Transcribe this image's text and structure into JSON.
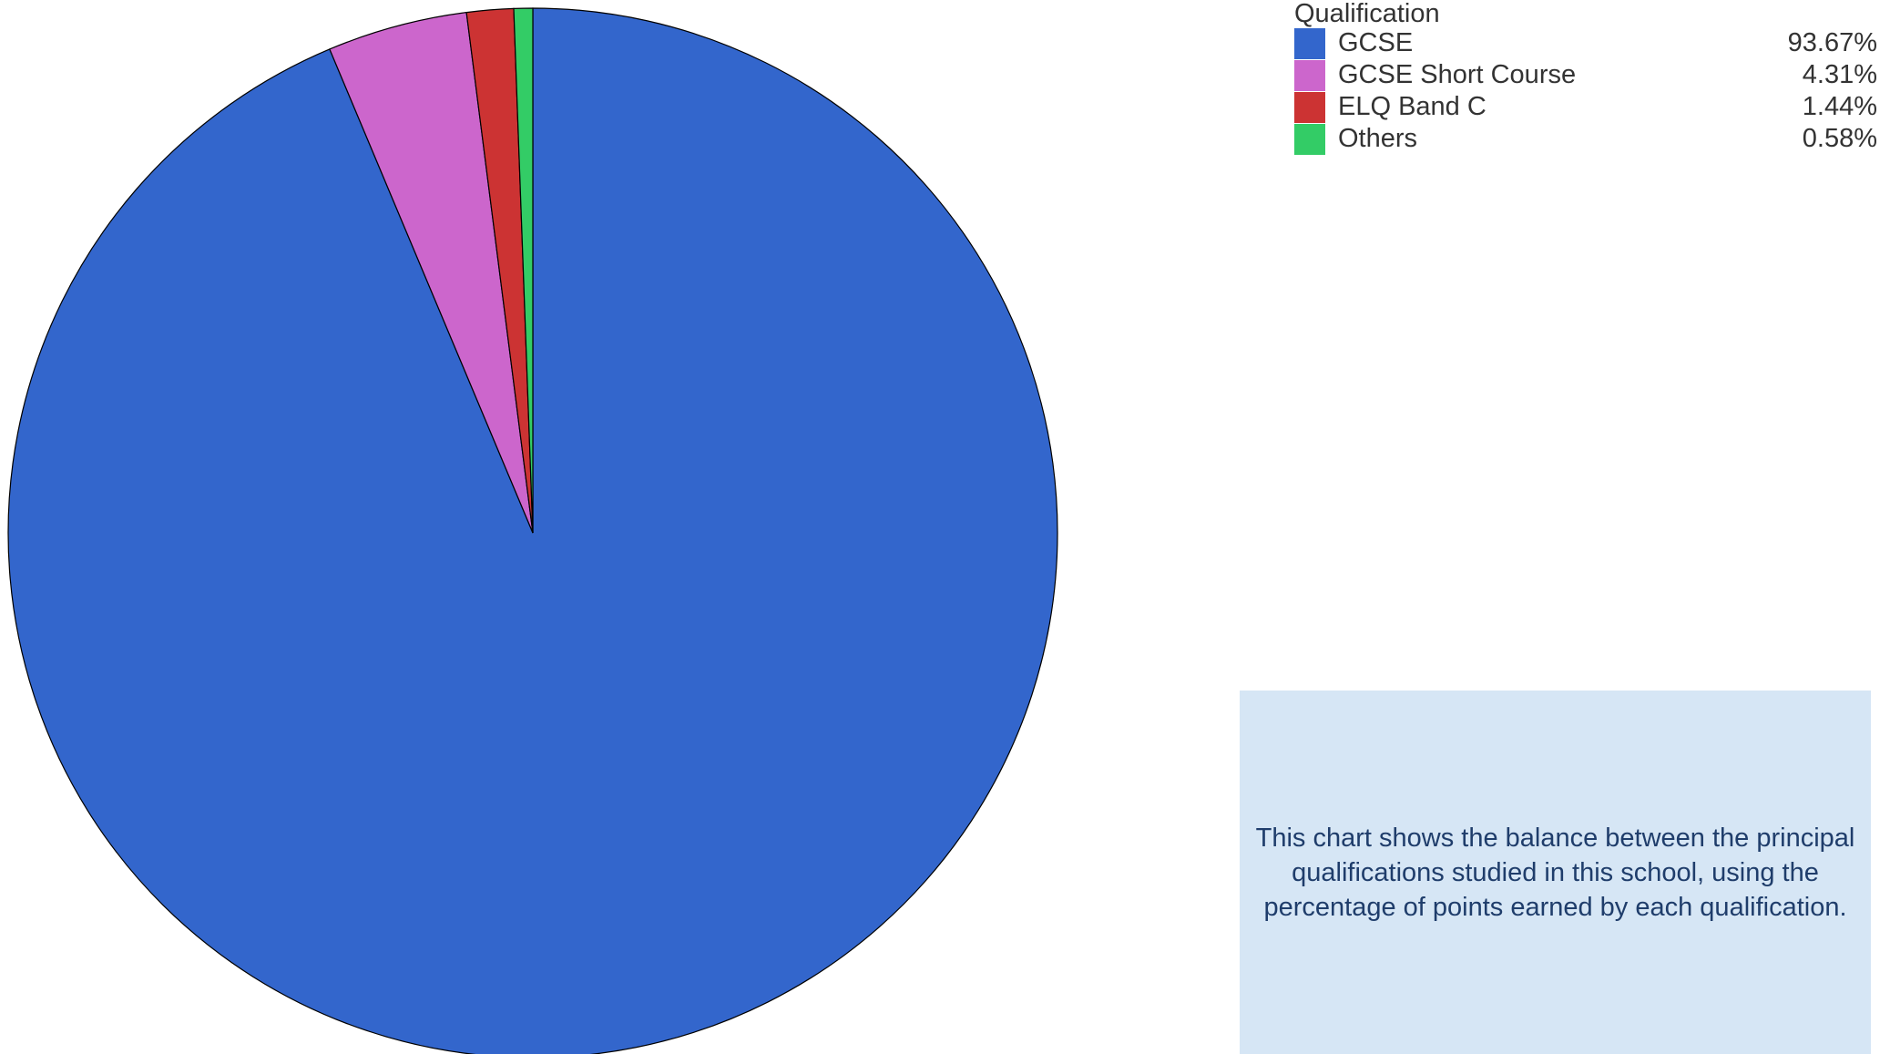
{
  "chart_data": {
    "type": "pie",
    "legend_title": "Qualification",
    "legend_position": "top-right",
    "slices": [
      {
        "label": "GCSE",
        "value": 93.67,
        "value_label": "93.67%",
        "color": "#3366cc"
      },
      {
        "label": "GCSE Short Course",
        "value": 4.31,
        "value_label": "4.31%",
        "color": "#cc66cc"
      },
      {
        "label": "ELQ Band C",
        "value": 1.44,
        "value_label": "1.44%",
        "color": "#cc3333"
      },
      {
        "label": "Others",
        "value": 0.58,
        "value_label": "0.58%",
        "color": "#33cc66"
      }
    ]
  },
  "note": {
    "text": "This chart shows the balance between the principal qualifications studied in this school, using the percentage of points earned by each qualification.",
    "background": "#d6e6f5"
  }
}
